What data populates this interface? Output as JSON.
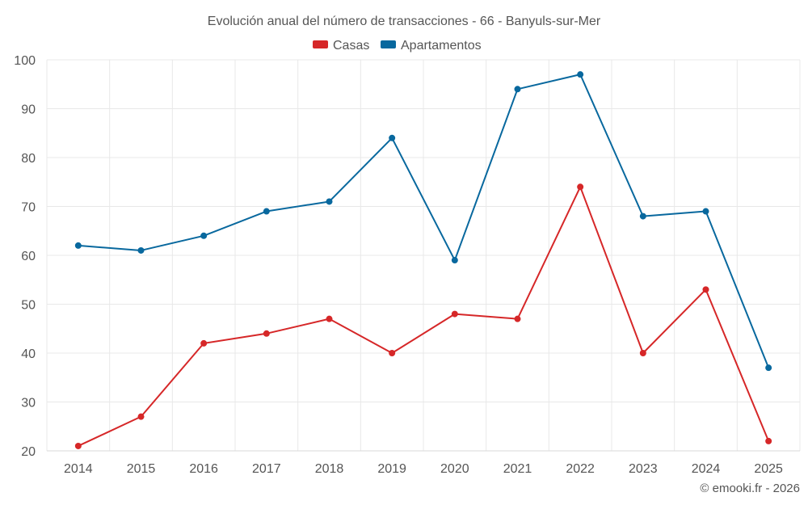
{
  "chart_data": {
    "type": "line",
    "title": "Evolución anual del número de transacciones - 66 - Banyuls-sur-Mer",
    "xlabel": "",
    "ylabel": "",
    "categories": [
      "2014",
      "2015",
      "2016",
      "2017",
      "2018",
      "2019",
      "2020",
      "2021",
      "2022",
      "2023",
      "2024",
      "2025"
    ],
    "ylim": [
      20,
      100
    ],
    "yticks": [
      20,
      30,
      40,
      50,
      60,
      70,
      80,
      90,
      100
    ],
    "grid": true,
    "legend_position": "top-center",
    "series": [
      {
        "name": "Casas",
        "color": "#d62728",
        "values": [
          21,
          27,
          42,
          44,
          47,
          40,
          48,
          47,
          74,
          40,
          53,
          22
        ]
      },
      {
        "name": "Apartamentos",
        "color": "#08689e",
        "values": [
          62,
          61,
          64,
          69,
          71,
          84,
          59,
          94,
          97,
          68,
          69,
          37
        ]
      }
    ]
  },
  "credit": "© emooki.fr - 2026"
}
